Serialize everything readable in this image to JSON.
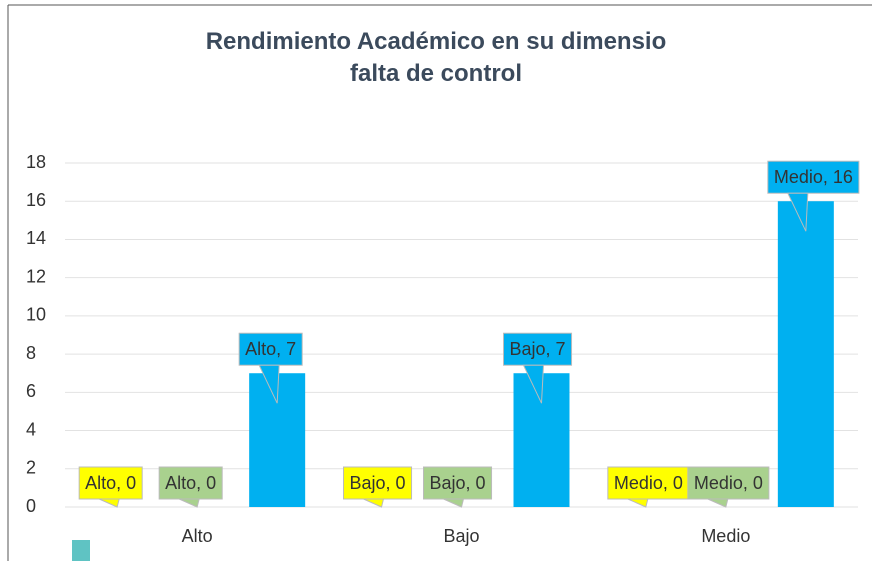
{
  "chart_data": {
    "type": "bar",
    "title": "Rendimiento Académico en su dimensio falta de control",
    "categories": [
      "Alto",
      "Bajo",
      "Medio"
    ],
    "series": [
      {
        "color": "#ffff00",
        "values": [
          0,
          0,
          0
        ],
        "value_labels": [
          "Alto, 0",
          "Bajo, 0",
          "Medio, 0"
        ]
      },
      {
        "color": "#a9d18e",
        "values": [
          0,
          0,
          0
        ],
        "value_labels": [
          "Alto, 0",
          "Bajo, 0",
          "Medio, 0"
        ]
      },
      {
        "color": "#00b0f0",
        "values": [
          7,
          7,
          16
        ],
        "value_labels": [
          "Alto, 7",
          "Bajo, 7",
          "Medio, 16"
        ]
      }
    ],
    "ylim": [
      0,
      18
    ],
    "yticks": [
      0,
      2,
      4,
      6,
      8,
      10,
      12,
      14,
      16,
      18
    ],
    "grid": true
  }
}
